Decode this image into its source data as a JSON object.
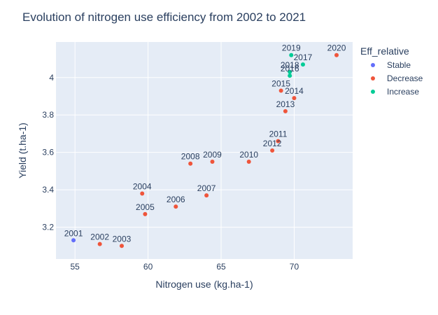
{
  "chart_data": {
    "type": "scatter",
    "title": "Evolution of nitrogen use efficiency from 2002 to 2021",
    "xlabel": "Nitrogen use (kg.ha-1)",
    "ylabel": "Yield (t.ha-1)",
    "xlim": [
      53.7,
      74.0
    ],
    "ylim": [
      3.03,
      4.19
    ],
    "xticks": [
      55,
      60,
      65,
      70
    ],
    "yticks": [
      3.2,
      3.4,
      3.6,
      3.8,
      4
    ],
    "grid": true,
    "legend": {
      "title": "Eff_relative",
      "position": "top-right",
      "entries": [
        {
          "name": "Stable",
          "color": "#636efa"
        },
        {
          "name": "Decrease",
          "color": "#ef553b"
        },
        {
          "name": "Increase",
          "color": "#00cc96"
        }
      ]
    },
    "series": [
      {
        "name": "Stable",
        "color": "#636efa",
        "points": [
          {
            "label": "2001",
            "x": 54.9,
            "y": 3.13
          }
        ]
      },
      {
        "name": "Decrease",
        "color": "#ef553b",
        "points": [
          {
            "label": "2002",
            "x": 56.7,
            "y": 3.11
          },
          {
            "label": "2003",
            "x": 58.2,
            "y": 3.1
          },
          {
            "label": "2004",
            "x": 59.6,
            "y": 3.38
          },
          {
            "label": "2005",
            "x": 59.8,
            "y": 3.27
          },
          {
            "label": "2006",
            "x": 61.9,
            "y": 3.31
          },
          {
            "label": "2007",
            "x": 64.0,
            "y": 3.37
          },
          {
            "label": "2008",
            "x": 62.9,
            "y": 3.54
          },
          {
            "label": "2009",
            "x": 64.4,
            "y": 3.55
          },
          {
            "label": "2010",
            "x": 66.9,
            "y": 3.55
          },
          {
            "label": "2012",
            "x": 68.5,
            "y": 3.61
          },
          {
            "label": "2011",
            "x": 68.9,
            "y": 3.66
          },
          {
            "label": "2013",
            "x": 69.4,
            "y": 3.82
          },
          {
            "label": "2014",
            "x": 70.0,
            "y": 3.89
          },
          {
            "label": "2015",
            "x": 69.1,
            "y": 3.93
          },
          {
            "label": "2020",
            "x": 72.9,
            "y": 4.12
          }
        ]
      },
      {
        "name": "Increase",
        "color": "#00cc96",
        "points": [
          {
            "label": "2016",
            "x": 69.7,
            "y": 4.01
          },
          {
            "label": "2018",
            "x": 69.7,
            "y": 4.03
          },
          {
            "label": "2017",
            "x": 70.6,
            "y": 4.07
          },
          {
            "label": "2019",
            "x": 69.8,
            "y": 4.12
          }
        ]
      }
    ]
  }
}
